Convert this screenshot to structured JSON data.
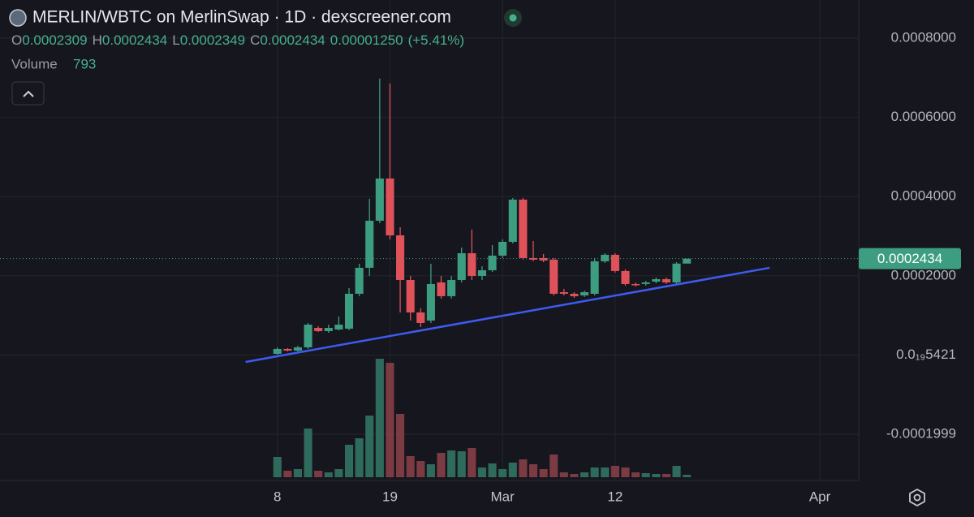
{
  "chart_data": {
    "type": "candlestick",
    "title": "MERLIN/WBTC on MerlinSwap · 1D · dexscreener.com",
    "ohlc_header": [
      {
        "key": "O",
        "value": "0.0002309"
      },
      {
        "key": "H",
        "value": "0.0002434"
      },
      {
        "key": "L",
        "value": "0.0002349"
      },
      {
        "key": "C",
        "value": "0.0002434"
      }
    ],
    "change": "0.00001250",
    "change_pct": "(+5.41%)",
    "volume_label": "Volume",
    "x": [
      0,
      1,
      2,
      3,
      4,
      5,
      6,
      7,
      8,
      9,
      10,
      11,
      12,
      13,
      14,
      15,
      16,
      17,
      18,
      19,
      20,
      21,
      22,
      23,
      24,
      25,
      26,
      27,
      28,
      29,
      30,
      31,
      32,
      33,
      34,
      35,
      36,
      37,
      38,
      39,
      40
    ],
    "open": [
      3.1e-06,
      1.54e-05,
      1.13e-05,
      1.95e-05,
      6.86e-05,
      6.04e-05,
      6.45e-05,
      6.66e-05,
      0.0001547,
      0.0002203,
      0.0003391,
      0.0004457,
      0.0003022,
      0.0001895,
      0.0001076,
      8.71e-05,
      0.0001834,
      0.0001486,
      0.0001895,
      0.0002571,
      0.0001998,
      0.0002141,
      0.000251,
      0.0002858,
      0.0003924,
      0.0002449,
      0.0002449,
      0.0002408,
      0.0001588,
      0.0001547,
      0.0001506,
      0.0001547,
      0.0002367,
      0.0002531,
      0.0002121,
      0.0001793,
      0.0001793,
      0.0001854,
      0.0001916,
      0.0001834,
      0.0002309
    ],
    "high": [
      1.95e-05,
      1.74e-05,
      2.36e-05,
      8.09e-05,
      7.27e-05,
      7.68e-05,
      9.73e-05,
      0.000169,
      0.0002305,
      0.0003944,
      0.0006977,
      0.0006854,
      0.0003227,
      0.0001998,
      0.0001178,
      0.0002305,
      0.0001998,
      0.0001998,
      0.0002715,
      0.0003166,
      0.0002244,
      0.0002776,
      0.000292,
      0.0003965,
      0.0003965,
      0.0002879,
      0.0002551,
      0.0002449,
      0.000167,
      0.0001588,
      0.0001629,
      0.0002449,
      0.0002571,
      0.0002571,
      0.0002162,
      0.0001834,
      0.0001875,
      0.0001957,
      0.0001957,
      0.0002346,
      0.0002434
    ],
    "low": [
      1e-06,
      9.2e-06,
      9.2e-06,
      1.54e-05,
      5.84e-05,
      5.63e-05,
      6.25e-05,
      6.25e-05,
      0.0001486,
      0.0001998,
      0.000333,
      0.000292,
      0.0001076,
      8.71e-05,
      7.07e-05,
      8.09e-05,
      0.0001424,
      0.0001424,
      0.0001834,
      0.0001895,
      0.0001895,
      0.00021,
      0.0002449,
      0.0002817,
      0.0002408,
      0.0002367,
      0.0002346,
      0.0001506,
      0.0001506,
      0.0001445,
      0.0001465,
      0.0001506,
      0.0002326,
      0.000208,
      0.0001752,
      0.0001731,
      0.0001752,
      0.0001813,
      0.0001793,
      0.0001793,
      0.0002349
    ],
    "close": [
      1.54e-05,
      1.13e-05,
      1.95e-05,
      7.68e-05,
      6.04e-05,
      6.86e-05,
      7.68e-05,
      0.0001547,
      0.0002203,
      0.0003391,
      0.0004457,
      0.0003022,
      0.0001895,
      0.0001076,
      8.09e-05,
      0.0001793,
      0.0001486,
      0.0001895,
      0.0002571,
      0.0001998,
      0.0002141,
      0.000251,
      0.0002858,
      0.0003924,
      0.0002449,
      0.0002408,
      0.0002387,
      0.0001547,
      0.0001547,
      0.0001486,
      0.0001588,
      0.0002367,
      0.0002531,
      0.0002121,
      0.0001793,
      0.0001772,
      0.0001834,
      0.0001916,
      0.0001834,
      0.0002309,
      0.0002434
    ],
    "volume": [
      6600,
      2112,
      2640,
      15840,
      2112,
      1584,
      2640,
      10560,
      12672,
      20064,
      38544,
      37224,
      20592,
      6864,
      5280,
      4224,
      7920,
      8712,
      8448,
      9504,
      3168,
      4488,
      2640,
      4752,
      5808,
      4224,
      2640,
      7392,
      1584,
      1056,
      1584,
      3168,
      3168,
      3696,
      3168,
      1584,
      1320,
      1056,
      1056,
      3696,
      793
    ],
    "volume_lim": [
      0,
      40000
    ],
    "up_color": "#3d9d80",
    "down_color": "#e0525a",
    "up_volume_color": "#2f6b5c",
    "down_volume_color": "#7c3b43",
    "trendline": {
      "x": [
        -3.1,
        48.1
      ],
      "y": [
        -1.74e-05,
        0.0002203
      ],
      "color": "#3e5bf0"
    },
    "xlim": [
      -27.1,
      56.8
    ],
    "ylim": [
      -0.0003166,
      0.0008963
    ],
    "xticks": [
      {
        "value": 0,
        "label": "8"
      },
      {
        "value": 11,
        "label": "19"
      },
      {
        "value": 22,
        "label": "Mar"
      },
      {
        "value": 33,
        "label": "12"
      },
      {
        "value": 53,
        "label": "Apr"
      }
    ],
    "yticks": [
      {
        "value": 0.0008,
        "label": "0.0008000"
      },
      {
        "value": 0.0006,
        "label": "0.0006000"
      },
      {
        "value": 0.0004,
        "label": "0.0004000"
      },
      {
        "value": 0.0002,
        "label": "0.0002000"
      },
      {
        "value": 5.421e-20,
        "label": "0.0₁₉5421"
      },
      {
        "value": -0.0001999,
        "label": "-0.0001999"
      }
    ],
    "grid": true
  }
}
